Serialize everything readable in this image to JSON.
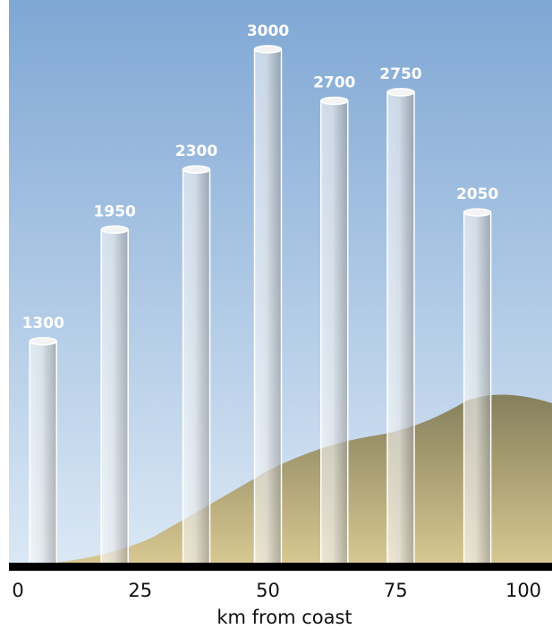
{
  "chart_data": {
    "type": "cylinder",
    "x": [
      6,
      20,
      36,
      50,
      63,
      76,
      91
    ],
    "values": [
      1300,
      1950,
      2300,
      3000,
      2700,
      2750,
      2050
    ],
    "xlim": [
      0,
      100
    ],
    "xticks": [
      0,
      25,
      50,
      75,
      100
    ],
    "ylim": [
      0,
      3000
    ],
    "xlabel": "km from coast"
  }
}
